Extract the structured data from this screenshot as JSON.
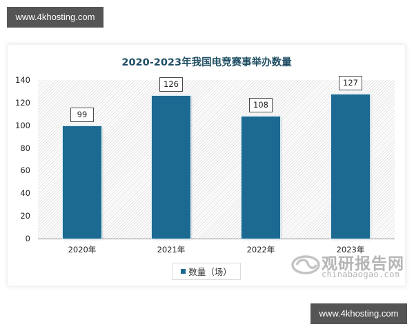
{
  "watermarks": {
    "top": "www.4khosting.com",
    "bottom": "www.4khosting.com"
  },
  "chart": {
    "title": "2020-2023年我国电竞赛事举办数量",
    "y_ticks": [
      "140",
      "120",
      "100",
      "80",
      "60",
      "40",
      "20",
      "0"
    ],
    "bars": [
      {
        "category": "2020年",
        "value": 99,
        "label": "99"
      },
      {
        "category": "2021年",
        "value": 126,
        "label": "126"
      },
      {
        "category": "2022年",
        "value": 108,
        "label": "108"
      },
      {
        "category": "2023年",
        "value": 127,
        "label": "127"
      }
    ],
    "legend": "数量（场）",
    "bar_color": "#1c6a91",
    "title_color": "#1f4e63"
  },
  "logo": {
    "cn": "观研报告网",
    "en": "chinabaogao.com"
  },
  "chart_data": {
    "type": "bar",
    "title": "2020-2023年我国电竞赛事举办数量",
    "categories": [
      "2020年",
      "2021年",
      "2022年",
      "2023年"
    ],
    "series": [
      {
        "name": "数量（场）",
        "values": [
          99,
          126,
          108,
          127
        ],
        "color": "#1c6a91"
      }
    ],
    "values": [
      99,
      126,
      108,
      127
    ],
    "xlabel": "",
    "ylabel": "",
    "ylim": [
      0,
      140
    ],
    "yticks": [
      0,
      20,
      40,
      60,
      80,
      100,
      120,
      140
    ],
    "grid": false,
    "data_labels": true,
    "legend_position": "bottom"
  }
}
